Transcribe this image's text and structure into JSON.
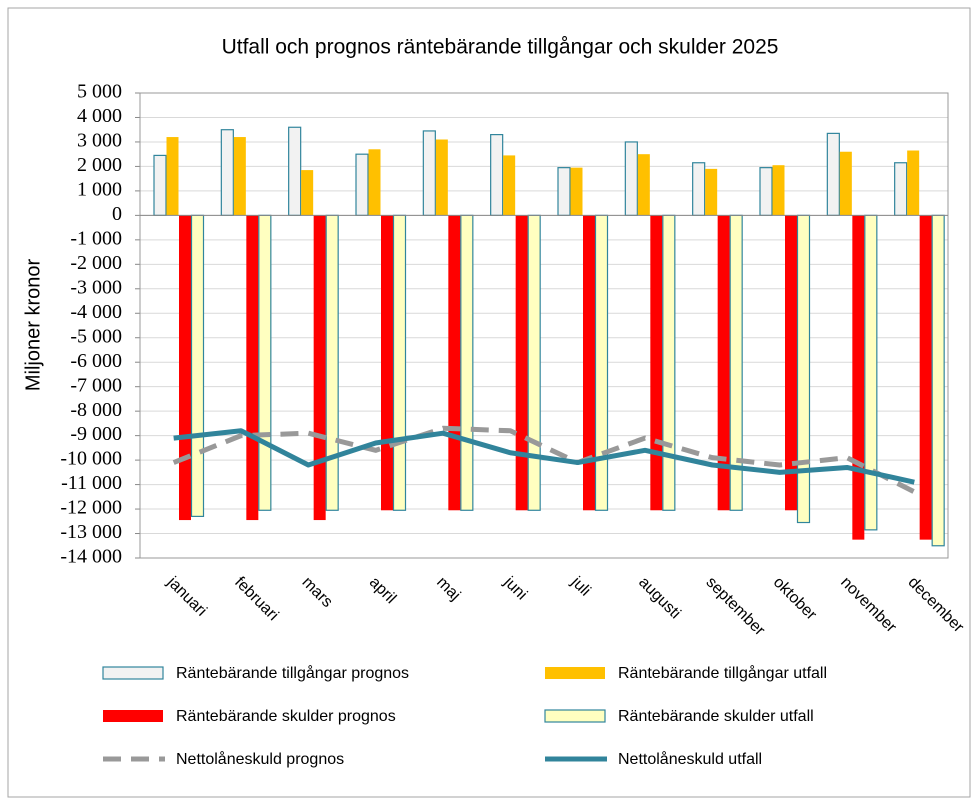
{
  "chart_data": {
    "type": "bar",
    "title": "Utfall och prognos räntebärande tillgångar och skulder 2025",
    "ylabel": "Miljoner kronor",
    "categories": [
      "januari",
      "februari",
      "mars",
      "april",
      "maj",
      "juni",
      "juli",
      "augusti",
      "september",
      "oktober",
      "november",
      "december"
    ],
    "series": [
      {
        "name": "Räntebärande tillgångar prognos",
        "type": "bar",
        "color": "#f2f2f2",
        "edgecolor": "#31859c",
        "values": [
          2450,
          3500,
          3600,
          2500,
          3450,
          3300,
          1950,
          3000,
          2150,
          1950,
          3350,
          2150
        ]
      },
      {
        "name": "Räntebärande tillgångar utfall",
        "type": "bar",
        "color": "#ffc000",
        "values": [
          3200,
          3200,
          1850,
          2700,
          3100,
          2450,
          1950,
          2500,
          1900,
          2050,
          2600,
          2650
        ]
      },
      {
        "name": "Räntebärande skulder prognos",
        "type": "bar",
        "color": "#ff0000",
        "values": [
          -12450,
          -12450,
          -12450,
          -12050,
          -12050,
          -12050,
          -12050,
          -12050,
          -12050,
          -12050,
          -13250,
          -13250
        ]
      },
      {
        "name": "Räntebärande skulder utfall",
        "type": "bar",
        "color": "#ffffc0",
        "edgecolor": "#31859c",
        "values": [
          -12300,
          -12050,
          -12050,
          -12050,
          -12050,
          -12050,
          -12050,
          -12050,
          -12050,
          -12550,
          -12850,
          -13500
        ]
      },
      {
        "name": "Nettolåneskuld prognos",
        "type": "line",
        "color": "#999999",
        "dashed": true,
        "values": [
          -10100,
          -9000,
          -8900,
          -9600,
          -8700,
          -8800,
          -10100,
          -9100,
          -9900,
          -10200,
          -9900,
          -11300
        ]
      },
      {
        "name": "Nettolåneskuld utfall",
        "type": "line",
        "color": "#31849b",
        "dashed": false,
        "values": [
          -9100,
          -8800,
          -10200,
          -9300,
          -8900,
          -9700,
          -10100,
          -9600,
          -10200,
          -10500,
          -10300,
          -10900
        ]
      }
    ],
    "ylim": [
      -14000,
      5000
    ],
    "yticks": [
      {
        "value": -14000,
        "label": "-14 000"
      },
      {
        "value": -13000,
        "label": "-13 000"
      },
      {
        "value": -12000,
        "label": "-12 000"
      },
      {
        "value": -11000,
        "label": "-11 000"
      },
      {
        "value": -10000,
        "label": "-10 000"
      },
      {
        "value": -9000,
        "label": "-9 000"
      },
      {
        "value": -8000,
        "label": "-8 000"
      },
      {
        "value": -7000,
        "label": "-7 000"
      },
      {
        "value": -6000,
        "label": "-6 000"
      },
      {
        "value": -5000,
        "label": "-5 000"
      },
      {
        "value": -4000,
        "label": "-4 000"
      },
      {
        "value": -3000,
        "label": "-3 000"
      },
      {
        "value": -2000,
        "label": "-2 000"
      },
      {
        "value": -1000,
        "label": "-1 000"
      },
      0,
      {
        "value": 1000,
        "label": "1 000"
      },
      {
        "value": 2000,
        "label": "2 000"
      },
      {
        "value": 3000,
        "label": "3 000"
      },
      {
        "value": 4000,
        "label": "4 000"
      },
      {
        "value": 5000,
        "label": "5 000"
      }
    ],
    "grid": true
  }
}
